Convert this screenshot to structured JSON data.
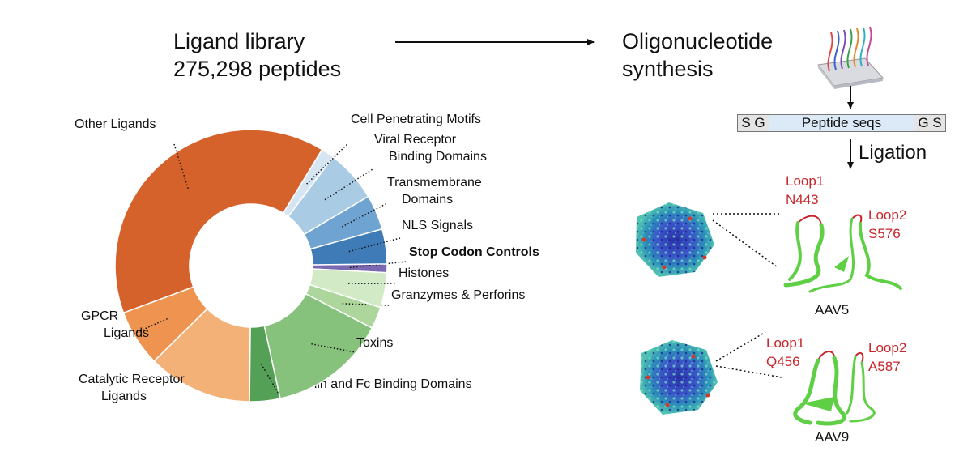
{
  "header": {
    "library_line1": "Ligand library",
    "library_line2": "275,298 peptides",
    "synthesis_line1": "Oligonucleotide",
    "synthesis_line2": "synthesis"
  },
  "construct": {
    "left_flank": "S G",
    "insert": "Peptide seqs",
    "right_flank": "G S",
    "step_label": "Ligation"
  },
  "chart_data": {
    "type": "pie",
    "donut": true,
    "slices": [
      {
        "label": "Stop Codon Controls",
        "value": 1.0,
        "color": "#7a68b0",
        "bold": true
      },
      {
        "label": "NLS Signals",
        "value": 4.0,
        "color": "#3f7bb6"
      },
      {
        "label": "Transmembrane Domains",
        "value": 4.0,
        "color": "#6fa3d1"
      },
      {
        "label": "Viral Receptor Binding Domains",
        "value": 6.0,
        "color": "#a9cbe4"
      },
      {
        "label": "Cell Penetrating Motifs",
        "value": 1.5,
        "color": "#d6e5f2"
      },
      {
        "label": "Other Ligands",
        "value": 38.0,
        "color": "#d5612b"
      },
      {
        "label": "GPCR Ligands",
        "value": 6.5,
        "color": "#ef9450"
      },
      {
        "label": "Catalytic Receptor Ligands",
        "value": 12.0,
        "color": "#f3b077"
      },
      {
        "label": "Albumin and Fc Binding Domains",
        "value": 3.5,
        "color": "#55a057"
      },
      {
        "label": "Toxins",
        "value": 13.5,
        "color": "#86c27c"
      },
      {
        "label": "Granzymes & Perforins",
        "value": 2.5,
        "color": "#acd69c"
      },
      {
        "label": "Histones",
        "value": 4.0,
        "color": "#d2ebc6"
      }
    ],
    "label_lines": {
      "Other Ligands": [
        "Other Ligands"
      ],
      "Cell Penetrating Motifs": [
        "Cell Penetrating Motifs"
      ],
      "Viral Receptor Binding Domains": [
        "Viral Receptor",
        "Binding Domains"
      ],
      "Transmembrane Domains": [
        "Transmembrane",
        "Domains"
      ],
      "NLS Signals": [
        "NLS Signals"
      ],
      "Stop Codon Controls": [
        "Stop Codon Controls"
      ],
      "Histones": [
        "Histones"
      ],
      "Granzymes & Perforins": [
        "Granzymes & Perforins"
      ],
      "Toxins": [
        "Toxins"
      ],
      "Albumin and Fc Binding Domains": [
        "Albumin and Fc Binding Domains"
      ],
      "GPCR Ligands": [
        "GPCR",
        "Ligands"
      ],
      "Catalytic Receptor Ligands": [
        "Catalytic Receptor",
        "Ligands"
      ]
    }
  },
  "capsids": [
    {
      "name": "AAV5",
      "loop1_label": "Loop1",
      "loop1_site": "N443",
      "loop2_label": "Loop2",
      "loop2_site": "S576"
    },
    {
      "name": "AAV9",
      "loop1_label": "Loop1",
      "loop1_site": "Q456",
      "loop2_label": "Loop2",
      "loop2_site": "A587"
    }
  ],
  "colors": {
    "loop_text": "#c8262b",
    "arrow": "#111111",
    "insert_fill": "#dce9f7",
    "flank_fill": "#e4e4e4",
    "ribbon": "#5fcf45"
  }
}
